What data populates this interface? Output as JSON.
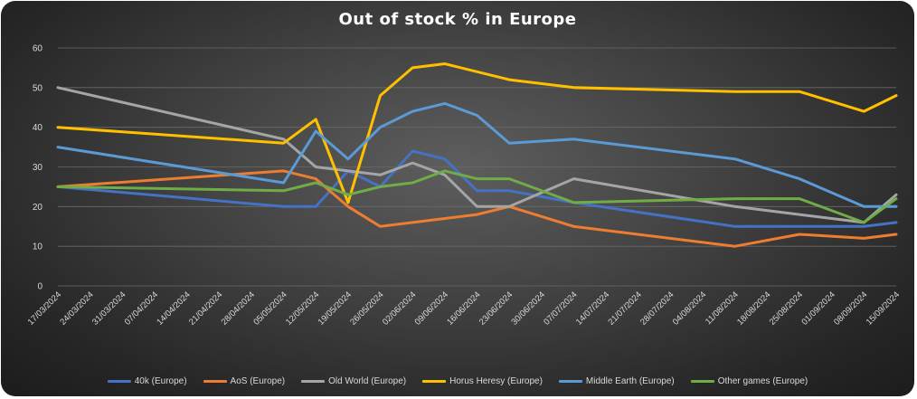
{
  "chart_data": {
    "type": "line",
    "title": "Out of stock % in Europe",
    "xlabel": "",
    "ylabel": "",
    "ylim": [
      0,
      60
    ],
    "yticks": [
      "0",
      "10",
      "20",
      "30",
      "40",
      "50",
      "60"
    ],
    "grid": true,
    "legend_position": "bottom",
    "categories": [
      "17/03/2024",
      "24/03/2024",
      "31/03/2024",
      "07/04/2024",
      "14/04/2024",
      "21/04/2024",
      "28/04/2024",
      "05/05/2024",
      "12/05/2024",
      "19/05/2024",
      "26/05/2024",
      "02/06/2024",
      "09/06/2024",
      "16/06/2024",
      "23/06/2024",
      "30/06/2024",
      "07/07/2024",
      "14/07/2024",
      "21/07/2024",
      "28/07/2024",
      "04/08/2024",
      "11/08/2024",
      "18/08/2024",
      "25/08/2024",
      "01/09/2024",
      "08/09/2024",
      "15/09/2024"
    ],
    "series": [
      {
        "name": "40k (Europe)",
        "color": "#4472c4",
        "points": [
          [
            "17/03/2024",
            25
          ],
          [
            "05/05/2024",
            20
          ],
          [
            "12/05/2024",
            20
          ],
          [
            "19/05/2024",
            29
          ],
          [
            "26/05/2024",
            25
          ],
          [
            "02/06/2024",
            34
          ],
          [
            "09/06/2024",
            32
          ],
          [
            "16/06/2024",
            24
          ],
          [
            "23/06/2024",
            24
          ],
          [
            "07/07/2024",
            21
          ],
          [
            "11/08/2024",
            15
          ],
          [
            "25/08/2024",
            15
          ],
          [
            "01/09/2024",
            15
          ],
          [
            "08/09/2024",
            15
          ],
          [
            "15/09/2024",
            16
          ]
        ]
      },
      {
        "name": "AoS (Europe)",
        "color": "#ed7d31",
        "points": [
          [
            "17/03/2024",
            25
          ],
          [
            "05/05/2024",
            29
          ],
          [
            "12/05/2024",
            27
          ],
          [
            "19/05/2024",
            20
          ],
          [
            "26/05/2024",
            15
          ],
          [
            "02/06/2024",
            16
          ],
          [
            "09/06/2024",
            17
          ],
          [
            "16/06/2024",
            18
          ],
          [
            "23/06/2024",
            20
          ],
          [
            "07/07/2024",
            15
          ],
          [
            "11/08/2024",
            10
          ],
          [
            "25/08/2024",
            13
          ],
          [
            "08/09/2024",
            12
          ],
          [
            "15/09/2024",
            13
          ]
        ]
      },
      {
        "name": "Old World (Europe)",
        "color": "#a5a5a5",
        "points": [
          [
            "17/03/2024",
            50
          ],
          [
            "05/05/2024",
            37
          ],
          [
            "12/05/2024",
            30
          ],
          [
            "19/05/2024",
            29
          ],
          [
            "26/05/2024",
            28
          ],
          [
            "02/06/2024",
            31
          ],
          [
            "09/06/2024",
            28
          ],
          [
            "16/06/2024",
            20
          ],
          [
            "23/06/2024",
            20
          ],
          [
            "07/07/2024",
            27
          ],
          [
            "11/08/2024",
            20
          ],
          [
            "25/08/2024",
            18
          ],
          [
            "08/09/2024",
            16
          ],
          [
            "15/09/2024",
            23
          ]
        ]
      },
      {
        "name": "Horus Heresy (Europe)",
        "color": "#ffc000",
        "points": [
          [
            "17/03/2024",
            40
          ],
          [
            "05/05/2024",
            36
          ],
          [
            "12/05/2024",
            42
          ],
          [
            "19/05/2024",
            21
          ],
          [
            "26/05/2024",
            48
          ],
          [
            "02/06/2024",
            55
          ],
          [
            "09/06/2024",
            56
          ],
          [
            "16/06/2024",
            54
          ],
          [
            "23/06/2024",
            52
          ],
          [
            "07/07/2024",
            50
          ],
          [
            "11/08/2024",
            49
          ],
          [
            "25/08/2024",
            49
          ],
          [
            "08/09/2024",
            44
          ],
          [
            "15/09/2024",
            48
          ]
        ]
      },
      {
        "name": "Middle Earth (Europe)",
        "color": "#5b9bd5",
        "points": [
          [
            "17/03/2024",
            35
          ],
          [
            "05/05/2024",
            26
          ],
          [
            "12/05/2024",
            39
          ],
          [
            "19/05/2024",
            32
          ],
          [
            "26/05/2024",
            40
          ],
          [
            "02/06/2024",
            44
          ],
          [
            "09/06/2024",
            46
          ],
          [
            "16/06/2024",
            43
          ],
          [
            "23/06/2024",
            36
          ],
          [
            "07/07/2024",
            37
          ],
          [
            "11/08/2024",
            32
          ],
          [
            "25/08/2024",
            27
          ],
          [
            "08/09/2024",
            20
          ],
          [
            "15/09/2024",
            20
          ]
        ]
      },
      {
        "name": "Other games (Europe)",
        "color": "#70ad47",
        "points": [
          [
            "17/03/2024",
            25
          ],
          [
            "05/05/2024",
            24
          ],
          [
            "12/05/2024",
            26
          ],
          [
            "19/05/2024",
            23
          ],
          [
            "26/05/2024",
            25
          ],
          [
            "02/06/2024",
            26
          ],
          [
            "09/06/2024",
            29
          ],
          [
            "16/06/2024",
            27
          ],
          [
            "23/06/2024",
            27
          ],
          [
            "07/07/2024",
            21
          ],
          [
            "11/08/2024",
            22
          ],
          [
            "25/08/2024",
            22
          ],
          [
            "08/09/2024",
            16
          ],
          [
            "15/09/2024",
            22
          ]
        ]
      }
    ]
  }
}
